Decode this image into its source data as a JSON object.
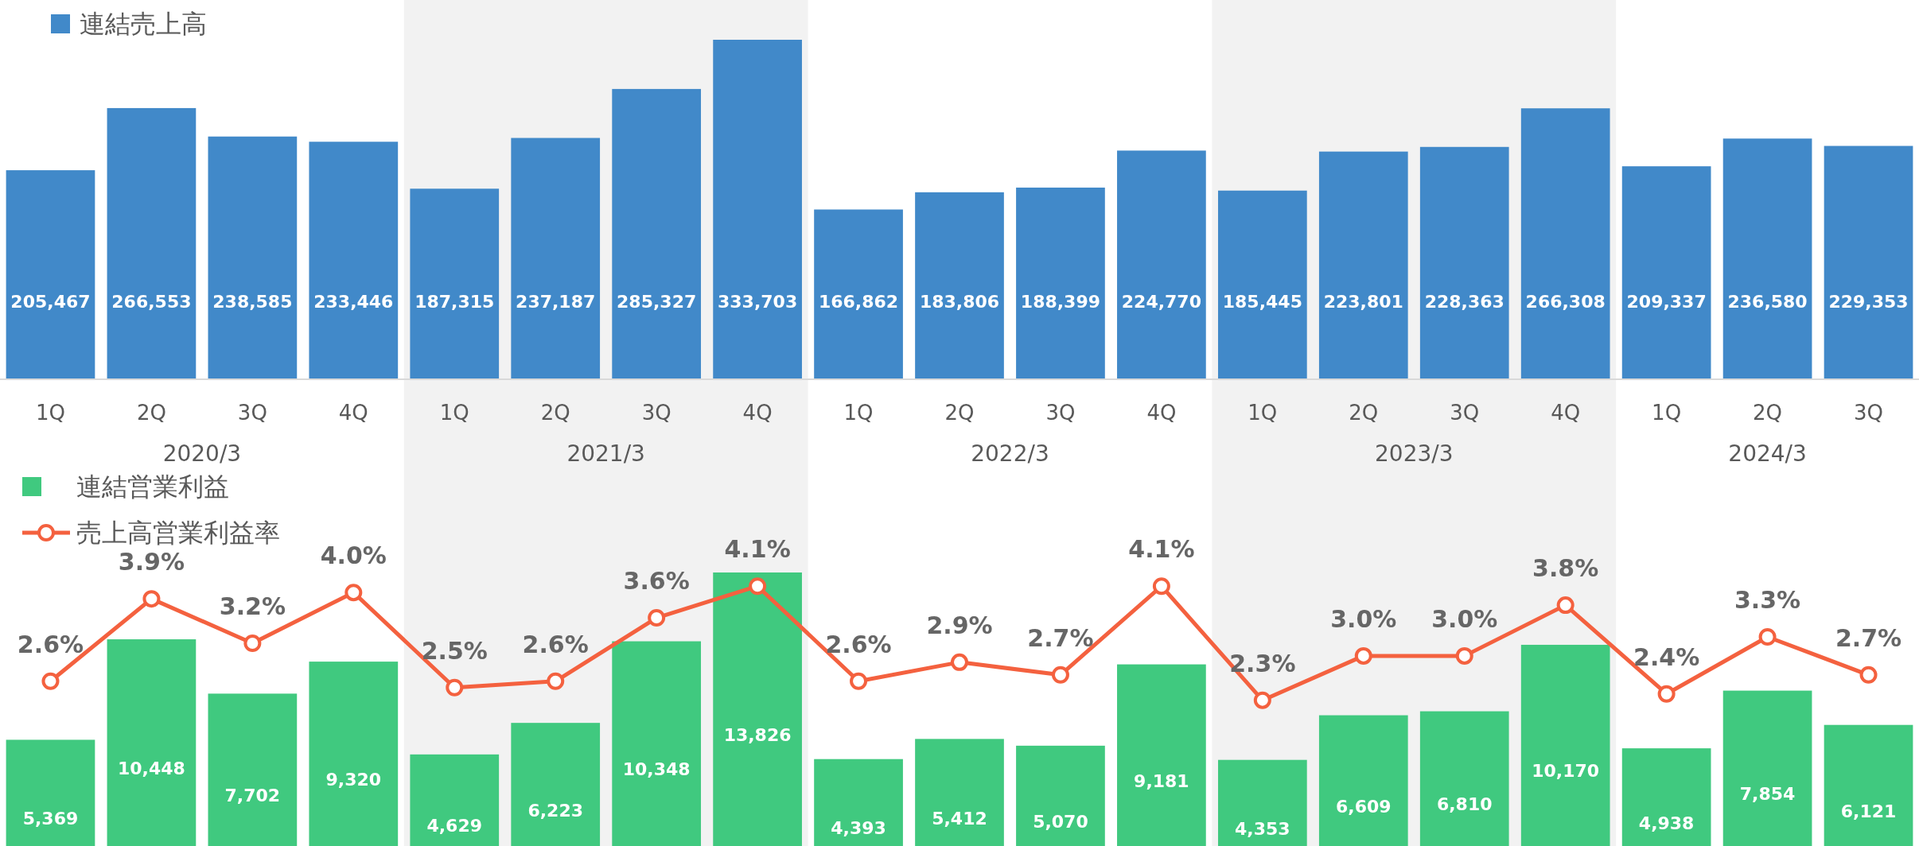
{
  "chart_data": [
    {
      "type": "bar",
      "categories": [
        "1Q",
        "2Q",
        "3Q",
        "4Q",
        "1Q",
        "2Q",
        "3Q",
        "4Q",
        "1Q",
        "2Q",
        "3Q",
        "4Q",
        "1Q",
        "2Q",
        "3Q",
        "4Q",
        "1Q",
        "2Q",
        "3Q"
      ],
      "series": [
        {
          "name": "連結売上高",
          "color": "#4189c9",
          "values": [
            205467,
            266553,
            238585,
            233446,
            187315,
            237187,
            285327,
            333703,
            166862,
            183806,
            188399,
            224770,
            185445,
            223801,
            228363,
            266308,
            209337,
            236580,
            229353
          ],
          "value_labels": [
            "205,467",
            "266,553",
            "238,585",
            "233,446",
            "187,315",
            "237,187",
            "285,327",
            "333,703",
            "166,862",
            "183,806",
            "188,399",
            "224,770",
            "185,445",
            "223,801",
            "228,363",
            "266,308",
            "209,337",
            "236,580",
            "229,353"
          ]
        }
      ],
      "legend": "top left",
      "tick_labels": "x",
      "annotations": [
        "2020/3",
        "2021/3",
        "2022/3",
        "2023/3",
        "2024/3"
      ]
    },
    {
      "type": "bar",
      "categories": [
        null,
        null,
        null,
        null,
        null,
        null,
        null,
        null,
        null,
        null,
        null,
        null,
        null,
        null,
        null,
        null,
        null,
        null,
        null
      ],
      "series": [
        {
          "name": "連結営業利益",
          "color": "#40c97f",
          "values": [
            5369,
            10448,
            7702,
            9320,
            4629,
            6223,
            10348,
            13826,
            4393,
            5412,
            5070,
            9181,
            4353,
            6609,
            6810,
            10170,
            4938,
            7854,
            6121
          ],
          "value_labels": [
            "5,369",
            "10,448",
            "7,702",
            "9,320",
            "4,629",
            "6,223",
            "10,348",
            "13,826",
            "4,393",
            "5,412",
            "5,070",
            "9,181",
            "4,353",
            "6,609",
            "6,810",
            "10,170",
            "4,938",
            "7,854",
            "6,121"
          ]
        },
        {
          "name": "売上高営業利益率",
          "type": "line",
          "axis": "y2",
          "color": "#f4613f",
          "marker": "circle",
          "values": [
            2.6,
            3.9,
            3.2,
            4.0,
            2.5,
            2.6,
            3.6,
            4.1,
            2.6,
            2.9,
            2.7,
            4.1,
            2.3,
            3.0,
            3.0,
            3.8,
            2.4,
            3.3,
            2.7
          ],
          "value_labels": [
            "2.6%",
            "3.9%",
            "3.2%",
            "4.0%",
            "2.5%",
            "2.6%",
            "3.6%",
            "4.1%",
            "2.6%",
            "2.9%",
            "2.7%",
            "4.1%",
            "2.3%",
            "3.0%",
            "3.0%",
            "3.8%",
            "2.4%",
            "3.3%",
            "2.7%"
          ]
        }
      ],
      "legend": "top left",
      "tick_labels": false
    }
  ]
}
